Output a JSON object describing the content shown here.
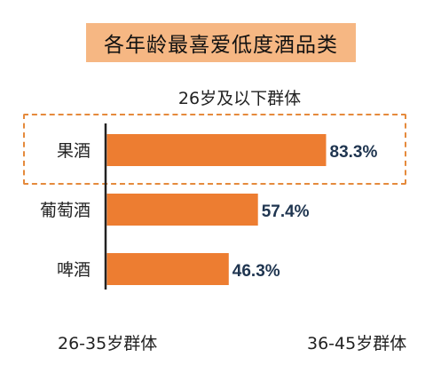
{
  "title": "各年龄最喜爱低度酒品类",
  "subtitle": "26岁及以下群体",
  "footer": {
    "left": "26-35岁群体",
    "right": "36-45岁群体"
  },
  "colors": {
    "bar": "#ed7d31",
    "title_bg": "#f6b783",
    "highlight": "#e58a3c",
    "value_text": "#1f3550",
    "axis": "#222222"
  },
  "chart_data": {
    "type": "bar",
    "orientation": "horizontal",
    "title": "26岁及以下群体",
    "categories": [
      "果酒",
      "葡萄酒",
      "啤酒"
    ],
    "values": [
      83.3,
      57.4,
      46.3
    ],
    "value_labels": [
      "83.3%",
      "57.4%",
      "46.3%"
    ],
    "unit": "%",
    "xlim": [
      0,
      100
    ],
    "grid": false,
    "legend": "none",
    "highlighted_category": "果酒"
  }
}
